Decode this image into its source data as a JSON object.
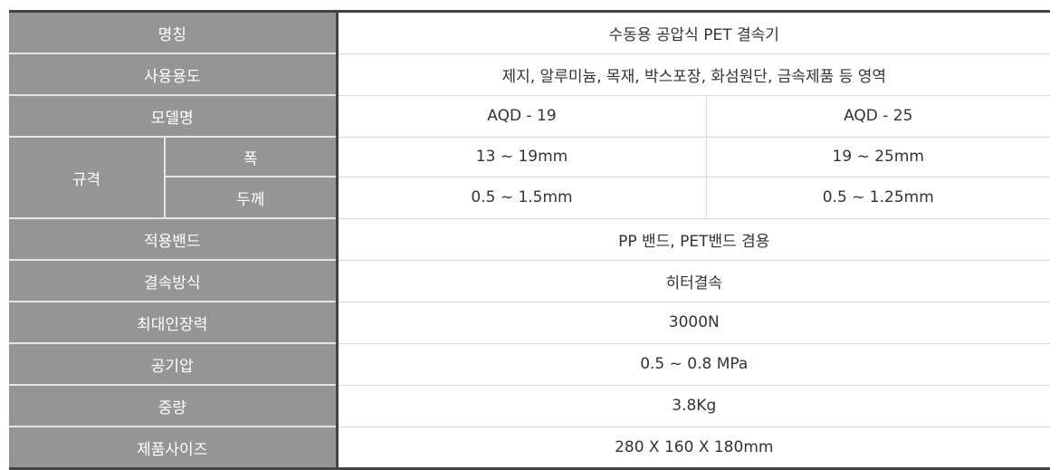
{
  "spec_table": {
    "rows": [
      {
        "label": "명칭",
        "value": "수동용 공압식 PET 결속기"
      },
      {
        "label": "사용용도",
        "value": "제지, 알루미늄, 목재, 박스포장, 화섬원단, 금속제품 등 영역"
      },
      {
        "label": "모델명",
        "values": [
          "AQD - 19",
          "AQD - 25"
        ]
      },
      {
        "label": "규격",
        "sub": [
          {
            "label": "폭",
            "values": [
              "13 ~ 19mm",
              "19 ~ 25mm"
            ]
          },
          {
            "label": "두께",
            "values": [
              "0.5 ~ 1.5mm",
              "0.5 ~ 1.25mm"
            ]
          }
        ]
      },
      {
        "label": "적용밴드",
        "value": "PP 밴드, PET밴드 겸용"
      },
      {
        "label": "결속방식",
        "value": "히터결속"
      },
      {
        "label": "최대인장력",
        "value": "3000N"
      },
      {
        "label": "공기압",
        "value": "0.5 ~ 0.8 MPa"
      },
      {
        "label": "중량",
        "value": "3.8Kg"
      },
      {
        "label": "제품사이즈",
        "value": "280 X 160 X 180mm"
      }
    ]
  }
}
